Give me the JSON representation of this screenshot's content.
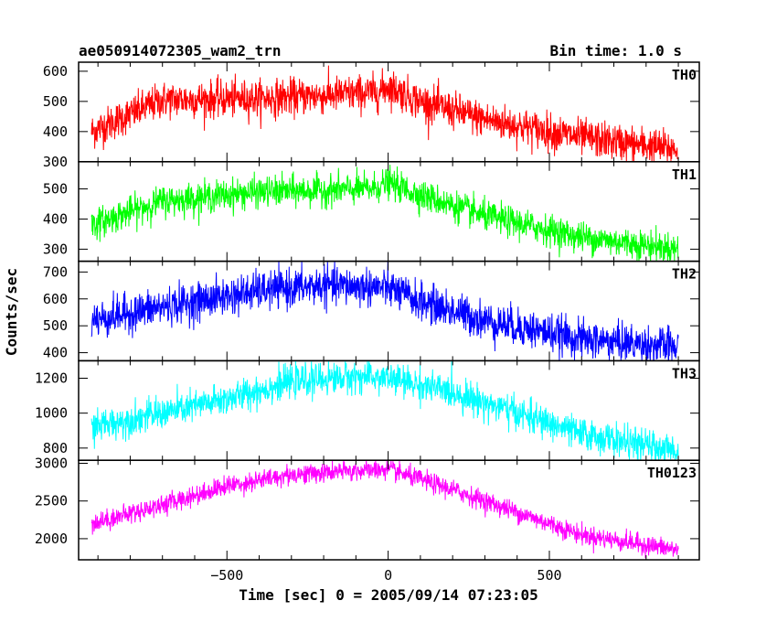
{
  "chart_data": {
    "type": "line",
    "title": "ae050914072305_wam2_trn",
    "subtitle": "Bin time: 1.0 s",
    "xlabel": "Time [sec] 0 = 2005/09/14 07:23:05",
    "ylabel": "Counts/sec",
    "xlim": [
      -960,
      965
    ],
    "x_ticks": [
      -500,
      0,
      500
    ],
    "x_tick_labels": [
      "−500",
      "0",
      "500"
    ],
    "panels": [
      {
        "name": "TH0",
        "color": "#ff0000",
        "ylim": [
          300,
          630
        ],
        "y_ticks": [
          300,
          400,
          500,
          600
        ],
        "noise": 30,
        "trend": {
          "x": [
            -920,
            -700,
            -400,
            -200,
            -30,
            0,
            100,
            300,
            600,
            900
          ],
          "y": [
            400,
            505,
            510,
            520,
            530,
            550,
            500,
            440,
            380,
            340
          ]
        }
      },
      {
        "name": "TH1",
        "color": "#00ff00",
        "ylim": [
          260,
          590
        ],
        "y_ticks": [
          300,
          400,
          500
        ],
        "noise": 25,
        "trend": {
          "x": [
            -920,
            -700,
            -400,
            -200,
            -50,
            0,
            100,
            300,
            600,
            900
          ],
          "y": [
            380,
            460,
            490,
            495,
            500,
            520,
            480,
            410,
            340,
            300
          ]
        }
      },
      {
        "name": "TH2",
        "color": "#0000ff",
        "ylim": [
          370,
          740
        ],
        "y_ticks": [
          400,
          500,
          600,
          700
        ],
        "noise": 35,
        "trend": {
          "x": [
            -920,
            -700,
            -400,
            -200,
            -50,
            0,
            100,
            300,
            600,
            900
          ],
          "y": [
            520,
            570,
            630,
            650,
            645,
            640,
            590,
            520,
            450,
            420
          ]
        }
      },
      {
        "name": "TH3",
        "color": "#00ffff",
        "ylim": [
          730,
          1300
        ],
        "y_ticks": [
          800,
          1000,
          1200
        ],
        "noise": 45,
        "trend": {
          "x": [
            -920,
            -700,
            -500,
            -300,
            -100,
            0,
            200,
            400,
            600,
            900
          ],
          "y": [
            920,
            1000,
            1080,
            1180,
            1210,
            1200,
            1120,
            1000,
            880,
            780
          ]
        }
      },
      {
        "name": "TH0123",
        "color": "#ff00ff",
        "ylim": [
          1720,
          3040
        ],
        "y_ticks": [
          2000,
          2500,
          3000
        ],
        "noise": 65,
        "trend": {
          "x": [
            -920,
            -700,
            -500,
            -300,
            -100,
            0,
            200,
            400,
            600,
            900
          ],
          "y": [
            2200,
            2450,
            2700,
            2850,
            2900,
            2920,
            2650,
            2350,
            2050,
            1850
          ]
        }
      }
    ]
  }
}
